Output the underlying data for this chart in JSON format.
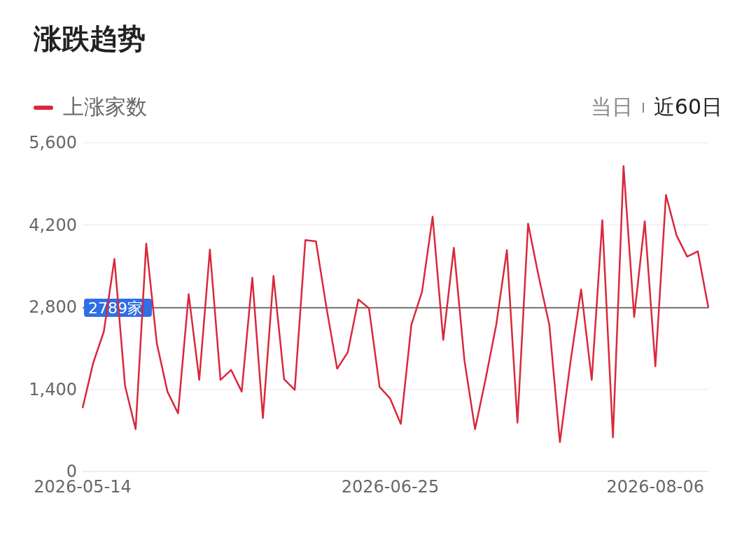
{
  "chart_data": {
    "type": "line",
    "title": "涨跌趋势",
    "categories": [
      "2026-05-14",
      null,
      null,
      null,
      null,
      null,
      null,
      null,
      null,
      null,
      null,
      null,
      null,
      null,
      null,
      null,
      null,
      null,
      null,
      null,
      null,
      null,
      null,
      null,
      null,
      null,
      null,
      null,
      null,
      "2026-06-25",
      null,
      null,
      null,
      null,
      null,
      null,
      null,
      null,
      null,
      null,
      null,
      null,
      null,
      null,
      null,
      null,
      null,
      null,
      null,
      null,
      null,
      null,
      null,
      null,
      "2026-08-06",
      null,
      null,
      null,
      null,
      null
    ],
    "series": [
      {
        "name": "上涨家数",
        "color": "#d9283c",
        "values": [
          1080,
          1850,
          2380,
          3620,
          1460,
          720,
          3880,
          2180,
          1360,
          990,
          3020,
          1560,
          3780,
          1560,
          1730,
          1360,
          3300,
          910,
          3330,
          1570,
          1390,
          3940,
          3920,
          2780,
          1750,
          2030,
          2930,
          2780,
          1440,
          1240,
          810,
          2500,
          3060,
          4340,
          2240,
          3810,
          1890,
          720,
          1580,
          2500,
          3770,
          830,
          4220,
          3320,
          2500,
          500,
          1870,
          3100,
          1560,
          4280,
          580,
          5200,
          2630,
          4260,
          1790,
          4710,
          4020,
          3660,
          3750,
          2789
        ]
      }
    ],
    "ylim": [
      0,
      5600
    ],
    "yticks": [
      0,
      {
        "value": 1400,
        "label": "1,400"
      },
      {
        "value": 2800,
        "label": "2,800"
      },
      {
        "value": 4200,
        "label": "4,200"
      },
      {
        "value": 5600,
        "label": "5,600"
      }
    ],
    "grid": "y",
    "legend": "top left",
    "marker": "none",
    "line_style": "solid",
    "ref_lines": [
      {
        "axis": "y",
        "value": 2789,
        "label": "2789家",
        "color": "#777777"
      }
    ],
    "annotations": [
      "当日",
      "近60日"
    ]
  }
}
